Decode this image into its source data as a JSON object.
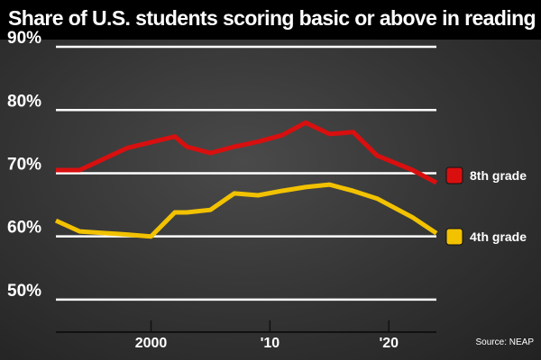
{
  "chart_data": {
    "type": "line",
    "title": "Share of U.S. students scoring basic or above in reading",
    "xlabel": "",
    "ylabel": "",
    "xlim": [
      1992,
      2024
    ],
    "ylim": [
      45,
      92
    ],
    "y_ticks": [
      50,
      60,
      70,
      80,
      90
    ],
    "y_tick_labels": [
      "50%",
      "60%",
      "70%",
      "80%",
      "90%"
    ],
    "x_ticks": [
      2000,
      2010,
      2020
    ],
    "x_tick_labels": [
      "2000",
      "'10",
      "'20"
    ],
    "grid": true,
    "legend_position": "right",
    "series": [
      {
        "name": "8th grade",
        "color": "#d90f0f",
        "x": [
          1992,
          1994,
          1998,
          2002,
          2003,
          2005,
          2007,
          2009,
          2011,
          2013,
          2015,
          2017,
          2019,
          2022,
          2024
        ],
        "y": [
          70.5,
          70.5,
          74,
          75.8,
          74.2,
          73.2,
          74.2,
          75,
          76,
          78,
          76.2,
          76.5,
          72.8,
          70.5,
          68.5
        ]
      },
      {
        "name": "4th grade",
        "color": "#f2c200",
        "x": [
          1992,
          1994,
          1998,
          2000,
          2002,
          2003,
          2005,
          2007,
          2009,
          2011,
          2013,
          2015,
          2017,
          2019,
          2022,
          2024
        ],
        "y": [
          62.5,
          60.8,
          60.3,
          60,
          63.8,
          63.8,
          64.2,
          66.8,
          66.5,
          67.2,
          67.8,
          68.2,
          67.2,
          66,
          63,
          60.5
        ]
      }
    ],
    "source": "Source: NEAP"
  }
}
